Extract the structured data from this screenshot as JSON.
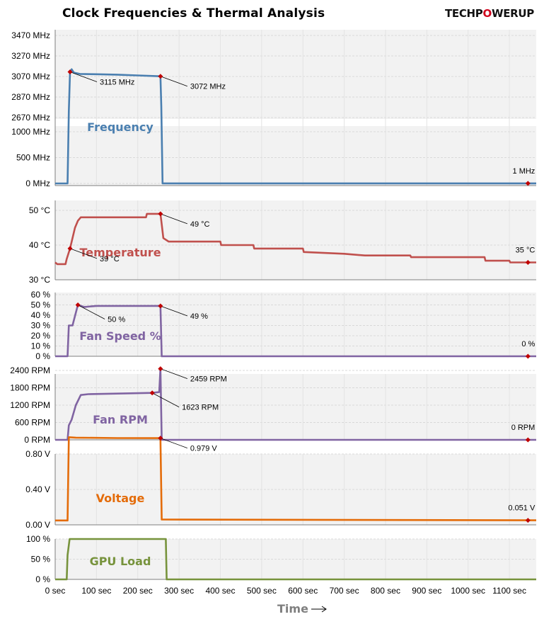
{
  "title": "Clock Frequencies & Thermal  Analysis",
  "brand": {
    "pre": "TECHP",
    "mid": "O",
    "post": "WERUP"
  },
  "colors": {
    "frequency": "#4a7fb0",
    "temperature": "#c0504d",
    "fan": "#8064a2",
    "voltage": "#e46c0a",
    "load": "#77933c",
    "marker": "#c00000",
    "grid": "#d9d9d9",
    "panel": "#f2f2f2"
  },
  "chart_data": {
    "type": "line",
    "xlabel": "Time",
    "xlim": [
      0,
      1165
    ],
    "x_ticks": [
      {
        "v": 0,
        "label": "0 sec"
      },
      {
        "v": 100,
        "label": "100 sec"
      },
      {
        "v": 200,
        "label": "200 sec"
      },
      {
        "v": 300,
        "label": "300 sec"
      },
      {
        "v": 400,
        "label": "400 sec"
      },
      {
        "v": 500,
        "label": "500 sec"
      },
      {
        "v": 600,
        "label": "600 sec"
      },
      {
        "v": 700,
        "label": "700 sec"
      },
      {
        "v": 800,
        "label": "800 sec"
      },
      {
        "v": 900,
        "label": "900 sec"
      },
      {
        "v": 1000,
        "label": "1000 sec"
      },
      {
        "v": 1100,
        "label": "1100 sec"
      }
    ],
    "panels": [
      {
        "key": "frequency",
        "name": "Frequency",
        "color": "#4a7fb0",
        "broken_axis": true,
        "upper": {
          "ylim": [
            2670,
            3570
          ],
          "ticks": [
            {
              "v": 3470,
              "label": "3470 MHz"
            },
            {
              "v": 3270,
              "label": "3270 MHz"
            },
            {
              "v": 3070,
              "label": "3070 MHz"
            },
            {
              "v": 2870,
              "label": "2870 MHz"
            },
            {
              "v": 2670,
              "label": "2670 MHz"
            }
          ]
        },
        "lower": {
          "ylim": [
            0,
            1000
          ],
          "ticks": [
            {
              "v": 1000,
              "label": "1000 MHz"
            },
            {
              "v": 500,
              "label": "500 MHz"
            },
            {
              "v": 0,
              "label": "0 MHz"
            }
          ]
        },
        "points": [
          [
            0,
            0
          ],
          [
            30,
            0
          ],
          [
            33,
            1400
          ],
          [
            36,
            3115
          ],
          [
            40,
            3140
          ],
          [
            45,
            3108
          ],
          [
            60,
            3095
          ],
          [
            100,
            3092
          ],
          [
            150,
            3088
          ],
          [
            200,
            3080
          ],
          [
            255,
            3072
          ],
          [
            257,
            1500
          ],
          [
            260,
            2
          ],
          [
            1165,
            1
          ]
        ],
        "annotations": [
          {
            "x": 36,
            "y": 3115,
            "label": "3115 MHz",
            "side": "right"
          },
          {
            "x": 255,
            "y": 3072,
            "label": "3072 MHz",
            "side": "right"
          },
          {
            "x": 1145,
            "y": 1,
            "label": "1 MHz",
            "side": "above"
          }
        ]
      },
      {
        "key": "temperature",
        "name": "Temperature",
        "color": "#c0504d",
        "ylim": [
          30,
          53
        ],
        "ticks": [
          {
            "v": 50,
            "label": "50 °C"
          },
          {
            "v": 40,
            "label": "40 °C"
          },
          {
            "v": 30,
            "label": "30 °C"
          }
        ],
        "points": [
          [
            0,
            35
          ],
          [
            5,
            34.5
          ],
          [
            25,
            34.5
          ],
          [
            28,
            36
          ],
          [
            36,
            39
          ],
          [
            42,
            42
          ],
          [
            48,
            45
          ],
          [
            55,
            47
          ],
          [
            62,
            48
          ],
          [
            220,
            48
          ],
          [
            222,
            49
          ],
          [
            255,
            49
          ],
          [
            258,
            46
          ],
          [
            262,
            42
          ],
          [
            275,
            41
          ],
          [
            400,
            41
          ],
          [
            402,
            40
          ],
          [
            480,
            40
          ],
          [
            482,
            39
          ],
          [
            600,
            39
          ],
          [
            602,
            38
          ],
          [
            700,
            37.5
          ],
          [
            750,
            37
          ],
          [
            860,
            37
          ],
          [
            862,
            36.5
          ],
          [
            1040,
            36.5
          ],
          [
            1042,
            35.5
          ],
          [
            1100,
            35.5
          ],
          [
            1102,
            35
          ],
          [
            1165,
            35
          ]
        ],
        "annotations": [
          {
            "x": 36,
            "y": 39,
            "label": "39 °C",
            "side": "right"
          },
          {
            "x": 255,
            "y": 49,
            "label": "49 °C",
            "side": "right"
          },
          {
            "x": 1145,
            "y": 35,
            "label": "35 °C",
            "side": "above"
          }
        ]
      },
      {
        "key": "fan_speed",
        "name": "Fan Speed %",
        "color": "#8064a2",
        "ylim": [
          0,
          60
        ],
        "ticks": [
          {
            "v": 60,
            "label": "60 %"
          },
          {
            "v": 50,
            "label": "50 %"
          },
          {
            "v": 40,
            "label": "40 %"
          },
          {
            "v": 30,
            "label": "30 %"
          },
          {
            "v": 20,
            "label": "20 %"
          },
          {
            "v": 10,
            "label": "10 %"
          },
          {
            "v": 0,
            "label": "0 %"
          }
        ],
        "points": [
          [
            0,
            0
          ],
          [
            30,
            0
          ],
          [
            33,
            30
          ],
          [
            42,
            30
          ],
          [
            55,
            50
          ],
          [
            70,
            48
          ],
          [
            100,
            49
          ],
          [
            255,
            49
          ],
          [
            258,
            0
          ],
          [
            1165,
            0
          ]
        ],
        "annotations": [
          {
            "x": 55,
            "y": 50,
            "label": "50 %",
            "side": "below"
          },
          {
            "x": 255,
            "y": 49,
            "label": "49 %",
            "side": "right"
          },
          {
            "x": 1145,
            "y": 0,
            "label": "0 %",
            "side": "above"
          }
        ]
      },
      {
        "key": "fan_rpm",
        "name": "Fan RPM",
        "color": "#8064a2",
        "ylim": [
          0,
          2800
        ],
        "ticks": [
          {
            "v": 2400,
            "label": "2400 RPM"
          },
          {
            "v": 1800,
            "label": "1800 RPM"
          },
          {
            "v": 1200,
            "label": "1200 RPM"
          },
          {
            "v": 600,
            "label": "600 RPM"
          },
          {
            "v": 0,
            "label": "0 RPM"
          }
        ],
        "points": [
          [
            0,
            0
          ],
          [
            30,
            0
          ],
          [
            33,
            500
          ],
          [
            40,
            700
          ],
          [
            50,
            1200
          ],
          [
            62,
            1550
          ],
          [
            80,
            1580
          ],
          [
            150,
            1600
          ],
          [
            235,
            1623
          ],
          [
            252,
            1650
          ],
          [
            255,
            2459
          ],
          [
            258,
            0
          ],
          [
            1165,
            0
          ]
        ],
        "annotations": [
          {
            "x": 235,
            "y": 1623,
            "label": "1623 RPM",
            "side": "below"
          },
          {
            "x": 255,
            "y": 2459,
            "label": "2459 RPM",
            "side": "right"
          },
          {
            "x": 1145,
            "y": 0,
            "label": "0 RPM",
            "side": "above"
          }
        ]
      },
      {
        "key": "voltage",
        "name": "Voltage",
        "color": "#e46c0a",
        "ylim": [
          0,
          1.05
        ],
        "ticks": [
          {
            "v": 0.8,
            "label": "0.80 V"
          },
          {
            "v": 0.4,
            "label": "0.40 V"
          },
          {
            "v": 0.0,
            "label": "0.00 V"
          }
        ],
        "points": [
          [
            0,
            0.05
          ],
          [
            30,
            0.05
          ],
          [
            33,
            0.99
          ],
          [
            50,
            0.985
          ],
          [
            150,
            0.98
          ],
          [
            255,
            0.979
          ],
          [
            258,
            0.06
          ],
          [
            1165,
            0.051
          ]
        ],
        "annotations": [
          {
            "x": 255,
            "y": 0.979,
            "label": "0.979 V",
            "side": "right"
          },
          {
            "x": 1145,
            "y": 0.051,
            "label": "0.051 V",
            "side": "above"
          }
        ]
      },
      {
        "key": "gpu_load",
        "name": "GPU Load",
        "color": "#77933c",
        "ylim": [
          0,
          100
        ],
        "ticks": [
          {
            "v": 100,
            "label": "100 %"
          },
          {
            "v": 50,
            "label": "50 %"
          },
          {
            "v": 0,
            "label": "0 %"
          }
        ],
        "points": [
          [
            0,
            0
          ],
          [
            28,
            0
          ],
          [
            30,
            60
          ],
          [
            35,
            100
          ],
          [
            268,
            100
          ],
          [
            270,
            0
          ],
          [
            1165,
            0
          ]
        ],
        "annotations": []
      }
    ]
  }
}
